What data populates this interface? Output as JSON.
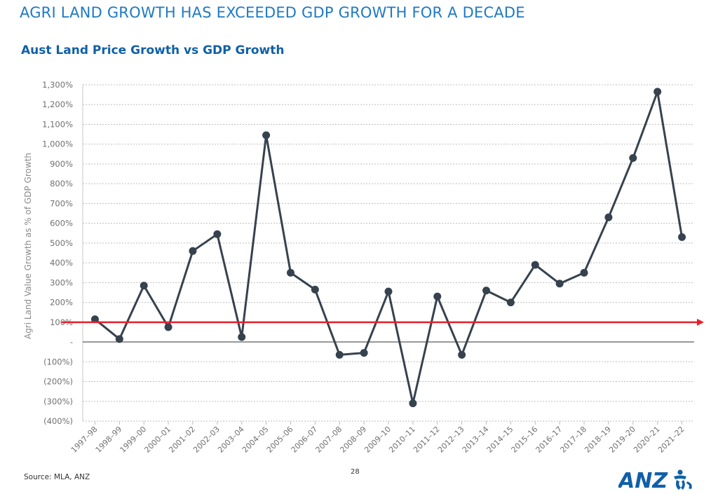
{
  "header": {
    "slide_title": "AGRI LAND GROWTH HAS EXCEEDED GDP GROWTH FOR A DECADE",
    "chart_title": "Aust Land Price Growth vs GDP Growth"
  },
  "footer": {
    "source": "Source: MLA, ANZ",
    "page_number": "28",
    "logo_text": "ANZ"
  },
  "colors": {
    "series_line": "#36424e",
    "reference_line": "#e8202a",
    "title_blue": "#1f7ac2",
    "logo_blue": "#1060a8"
  },
  "chart_data": {
    "type": "line",
    "title": "Aust Land Price Growth vs GDP Growth",
    "ylabel": "Agri Land Value Growth as % of GDP Growth",
    "xlabel": "",
    "ylim": [
      -400,
      1300
    ],
    "y_ticks": [
      {
        "value": 1300,
        "label": "1,300%"
      },
      {
        "value": 1200,
        "label": "1,200%"
      },
      {
        "value": 1100,
        "label": "1,100%"
      },
      {
        "value": 1000,
        "label": "1,000%"
      },
      {
        "value": 900,
        "label": "900%"
      },
      {
        "value": 800,
        "label": "800%"
      },
      {
        "value": 700,
        "label": "700%"
      },
      {
        "value": 600,
        "label": "600%"
      },
      {
        "value": 500,
        "label": "500%"
      },
      {
        "value": 400,
        "label": "400%"
      },
      {
        "value": 300,
        "label": "300%"
      },
      {
        "value": 200,
        "label": "200%"
      },
      {
        "value": 100,
        "label": "100%"
      },
      {
        "value": 0,
        "label": "-"
      },
      {
        "value": -100,
        "label": "(100%)"
      },
      {
        "value": -200,
        "label": "(200%)"
      },
      {
        "value": -300,
        "label": "(300%)"
      },
      {
        "value": -400,
        "label": "(400%)"
      }
    ],
    "categories": [
      "1997–98",
      "1998–99",
      "1999–00",
      "2000–01",
      "2001–02",
      "2002–03",
      "2003–04",
      "2004–05",
      "2005–06",
      "2006–07",
      "2007–08",
      "2008–09",
      "2009–10",
      "2010–11",
      "2011–12",
      "2012–13",
      "2013–14",
      "2014–15",
      "2015–16",
      "2016–17",
      "2017–18",
      "2018–19",
      "2019–20",
      "2020–21",
      "2021–22"
    ],
    "values": [
      115,
      15,
      285,
      75,
      460,
      545,
      25,
      1045,
      350,
      265,
      -65,
      -55,
      255,
      -310,
      230,
      -65,
      260,
      200,
      390,
      295,
      350,
      630,
      930,
      1265,
      530
    ],
    "reference_line": {
      "value": 100,
      "arrow": true
    },
    "grid": true,
    "legend": "none"
  }
}
